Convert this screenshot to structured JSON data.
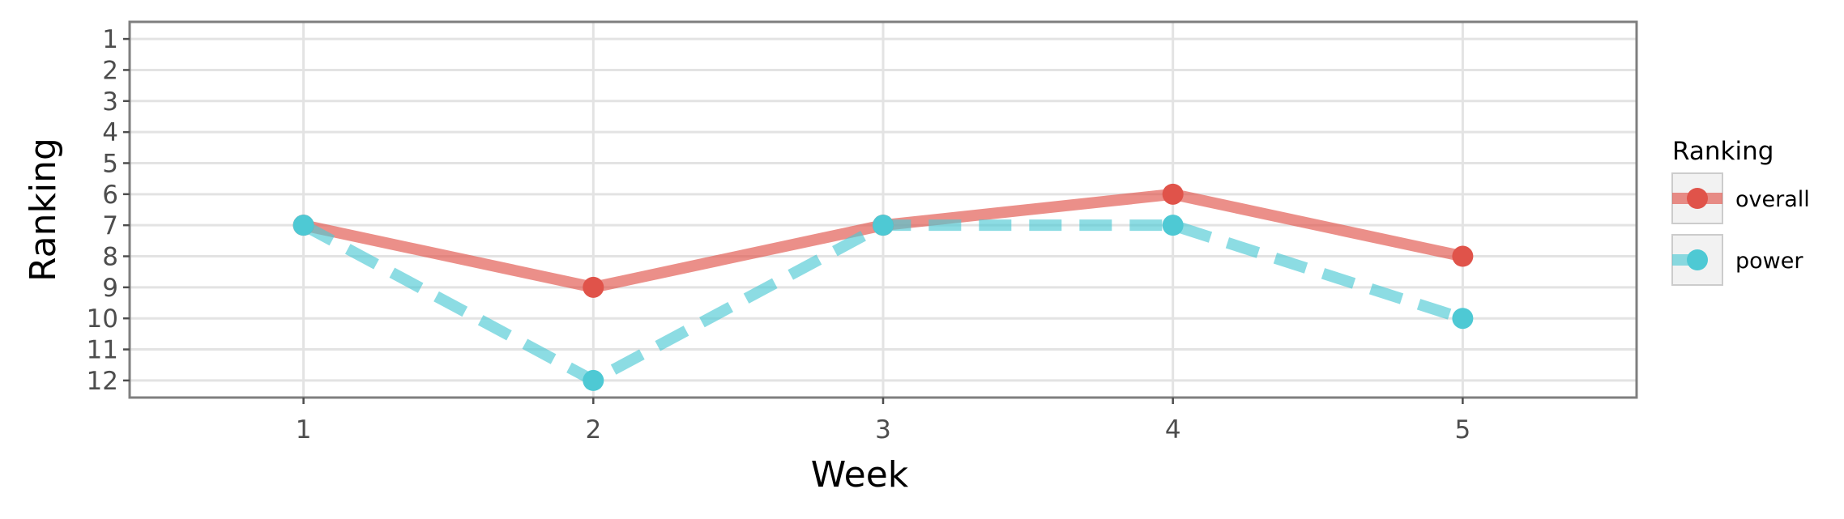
{
  "chart_data": {
    "type": "line",
    "x": [
      1,
      2,
      3,
      4,
      5
    ],
    "series": [
      {
        "name": "overall",
        "values": [
          7,
          9,
          7,
          6,
          8
        ],
        "color": "#e0534a",
        "linestyle": "solid"
      },
      {
        "name": "power",
        "values": [
          7,
          12,
          7,
          7,
          10
        ],
        "color": "#4ec9d4",
        "linestyle": "dashed"
      }
    ],
    "title": "",
    "xlabel": "Week",
    "ylabel": "Ranking",
    "xlim": [
      0.4,
      5.6
    ],
    "ylim": [
      12.55,
      0.45
    ],
    "y_reversed": true,
    "xticks": [
      "1",
      "2",
      "3",
      "4",
      "5"
    ],
    "yticks": [
      "1",
      "2",
      "3",
      "4",
      "5",
      "6",
      "7",
      "8",
      "9",
      "10",
      "11",
      "12"
    ],
    "grid": true,
    "legend": {
      "title": "Ranking",
      "position": "right"
    }
  }
}
